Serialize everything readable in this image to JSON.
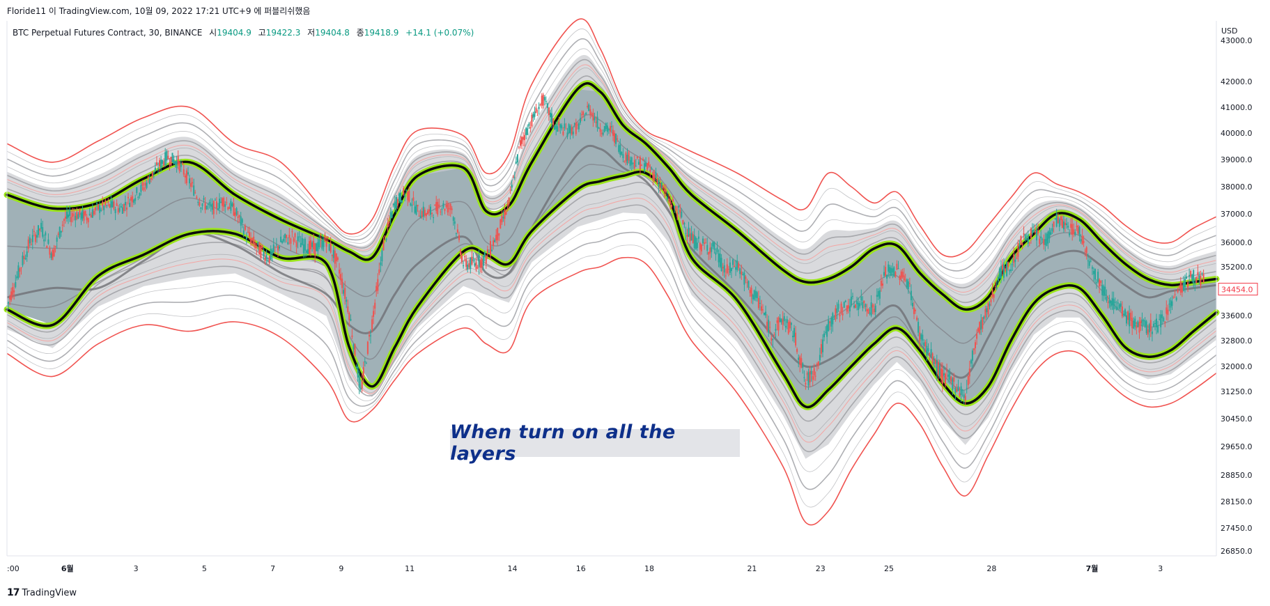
{
  "header": {
    "caption": "Floride11 이 TradingView.com, 10월 09, 2022 17:21 UTC+9 에 퍼블리쉬했음"
  },
  "legend": {
    "symbol": "BTC Perpetual Futures Contract, 30, BINANCE",
    "open_label": "시",
    "open": "19404.9",
    "high_label": "고",
    "high": "19422.3",
    "low_label": "저",
    "low": "19404.8",
    "close_label": "종",
    "close": "19418.9",
    "change": "+14.1 (+0.07%)"
  },
  "annotation": "When turn on all the layers",
  "footer": {
    "brand": "TradingView"
  },
  "colors": {
    "bull": "#089981",
    "band_fill": "#8fa3aa",
    "band_green": "#9be51a",
    "outer_red": "#f05350",
    "gray_line": "#8a8b91",
    "price_tag": "#f23645",
    "annotation_text": "#0d2f8a",
    "annotation_bg": "#e3e4e8"
  },
  "chart_data": {
    "type": "line",
    "currency": "USD",
    "last_price_tag": "34454.0",
    "y_ticks": [
      {
        "label": "43000.0",
        "v": 43000
      },
      {
        "label": "42000.0",
        "v": 42000
      },
      {
        "label": "41000.0",
        "v": 41000
      },
      {
        "label": "40000.0",
        "v": 40000
      },
      {
        "label": "39000.0",
        "v": 39000
      },
      {
        "label": "38000.0",
        "v": 38000
      },
      {
        "label": "37000.0",
        "v": 37000
      },
      {
        "label": "36000.0",
        "v": 36000
      },
      {
        "label": "35200.0",
        "v": 35200
      },
      {
        "label": "33600.0",
        "v": 33600
      },
      {
        "label": "32800.0",
        "v": 32800
      },
      {
        "label": "32000.0",
        "v": 32000
      },
      {
        "label": "31250.0",
        "v": 31250
      },
      {
        "label": "30450.0",
        "v": 30450
      },
      {
        "label": "29650.0",
        "v": 29650
      },
      {
        "label": "28850.0",
        "v": 28850
      },
      {
        "label": "28150.0",
        "v": 28150
      },
      {
        "label": "27450.0",
        "v": 27450
      },
      {
        "label": "26850.0",
        "v": 26850
      }
    ],
    "x_ticks": [
      {
        "label": ":00",
        "t": 0.0
      },
      {
        "label": "6월",
        "t": 5.3,
        "bold": true
      },
      {
        "label": "3",
        "t": 11.3
      },
      {
        "label": "5",
        "t": 17.3
      },
      {
        "label": "7",
        "t": 23.3
      },
      {
        "label": "9",
        "t": 29.3
      },
      {
        "label": "11",
        "t": 35.3
      },
      {
        "label": "14",
        "t": 44.3
      },
      {
        "label": "16",
        "t": 50.3
      },
      {
        "label": "18",
        "t": 56.3
      },
      {
        "label": "21",
        "t": 65.3
      },
      {
        "label": "23",
        "t": 71.3
      },
      {
        "label": "25",
        "t": 77.3
      },
      {
        "label": "28",
        "t": 86.3
      },
      {
        "label": "7월",
        "t": 95.1,
        "bold": true
      },
      {
        "label": "3",
        "t": 101.1
      }
    ],
    "x_range": [
      0,
      106
    ],
    "series": [
      {
        "role": "mid",
        "x": [
          0,
          4,
          8,
          12,
          16,
          20,
          24,
          28,
          30,
          32,
          34,
          36,
          40,
          42,
          44,
          46,
          50,
          52,
          54,
          56,
          58,
          60,
          64,
          68,
          70,
          72,
          74,
          76,
          78,
          80,
          82,
          84,
          86,
          88,
          90,
          92,
          94,
          96,
          98,
          100,
          102,
          104,
          106
        ],
        "values": [
          34200,
          34500,
          34500,
          35400,
          36300,
          35900,
          35000,
          34300,
          33300,
          33100,
          34300,
          35300,
          36200,
          35000,
          35000,
          36500,
          39200,
          39400,
          38700,
          38200,
          37100,
          35800,
          34300,
          32600,
          32000,
          32200,
          32700,
          33500,
          33900,
          32700,
          32000,
          31700,
          32900,
          34300,
          35200,
          35600,
          35700,
          35200,
          34600,
          34200,
          34400,
          34500,
          34600
        ]
      },
      {
        "role": "upper_band",
        "x": [
          0,
          4,
          8,
          12,
          16,
          20,
          24,
          28,
          30,
          32,
          34,
          36,
          40,
          42,
          44,
          46,
          50,
          52,
          54,
          56,
          58,
          60,
          64,
          68,
          70,
          72,
          74,
          76,
          78,
          80,
          82,
          84,
          86,
          88,
          90,
          92,
          94,
          96,
          98,
          100,
          102,
          104,
          106
        ],
        "values": [
          37700,
          37200,
          37400,
          38300,
          38900,
          37700,
          36800,
          36100,
          35700,
          35500,
          37000,
          38400,
          38700,
          37100,
          37300,
          38900,
          41700,
          41600,
          40300,
          39600,
          38700,
          37700,
          36400,
          35100,
          34700,
          34800,
          35200,
          35800,
          35900,
          35000,
          34300,
          33800,
          34200,
          35500,
          36300,
          37000,
          36800,
          36000,
          35300,
          34800,
          34600,
          34700,
          34800
        ]
      },
      {
        "role": "lower_band",
        "x": [
          0,
          4,
          8,
          12,
          16,
          20,
          24,
          28,
          30,
          32,
          34,
          36,
          40,
          42,
          44,
          46,
          50,
          52,
          54,
          56,
          58,
          60,
          64,
          68,
          70,
          72,
          74,
          76,
          78,
          80,
          82,
          84,
          86,
          88,
          90,
          92,
          94,
          96,
          98,
          100,
          102,
          104,
          106
        ],
        "values": [
          33800,
          33300,
          34900,
          35600,
          36300,
          36300,
          35500,
          35300,
          32600,
          31400,
          32600,
          33900,
          35700,
          35600,
          35300,
          36400,
          37900,
          38200,
          38400,
          38500,
          37600,
          35500,
          34100,
          31800,
          30800,
          31300,
          32000,
          32700,
          33200,
          32500,
          31500,
          30900,
          31400,
          32800,
          34000,
          34500,
          34500,
          33600,
          32600,
          32300,
          32500,
          33100,
          33700
        ]
      },
      {
        "role": "outer_upper",
        "x": [
          0,
          4,
          8,
          12,
          16,
          20,
          24,
          28,
          30,
          32,
          34,
          36,
          40,
          42,
          44,
          46,
          50,
          52,
          54,
          56,
          58,
          60,
          64,
          68,
          70,
          72,
          74,
          76,
          78,
          80,
          82,
          84,
          86,
          88,
          90,
          92,
          94,
          96,
          98,
          100,
          102,
          104,
          106
        ],
        "values": [
          39600,
          38900,
          39700,
          40600,
          41000,
          39600,
          38900,
          37000,
          36300,
          36800,
          38800,
          40100,
          39900,
          38500,
          39200,
          41900,
          43500,
          42800,
          41200,
          40100,
          39700,
          39300,
          38500,
          37500,
          37200,
          38500,
          38000,
          37400,
          37800,
          36600,
          35600,
          35700,
          36600,
          37600,
          38500,
          38100,
          37800,
          37300,
          36600,
          36100,
          36000,
          36500,
          36900
        ]
      },
      {
        "role": "outer_lower",
        "x": [
          0,
          4,
          8,
          12,
          16,
          20,
          24,
          28,
          30,
          32,
          34,
          36,
          40,
          42,
          44,
          46,
          50,
          52,
          54,
          56,
          58,
          60,
          64,
          68,
          70,
          72,
          74,
          76,
          78,
          80,
          82,
          84,
          86,
          88,
          90,
          92,
          94,
          96,
          98,
          100,
          102,
          104,
          106
        ],
        "values": [
          32400,
          31700,
          32700,
          33300,
          33100,
          33400,
          32900,
          31600,
          30400,
          30700,
          31600,
          32400,
          33200,
          32700,
          32500,
          34100,
          35000,
          35200,
          35500,
          35300,
          34200,
          32800,
          31200,
          29100,
          27600,
          27900,
          29000,
          30000,
          30900,
          30300,
          29100,
          28300,
          29400,
          30700,
          31800,
          32400,
          32400,
          31700,
          31100,
          30800,
          30900,
          31300,
          31800
        ]
      }
    ],
    "candles": {
      "x": [
        0,
        1,
        2,
        3,
        4,
        5,
        6,
        7,
        8,
        9,
        10,
        11,
        12,
        13,
        14,
        15,
        16,
        17,
        18,
        19,
        20,
        21,
        22,
        23,
        24,
        25,
        26,
        27,
        28,
        29,
        30,
        31,
        32,
        33,
        34,
        35,
        36,
        37,
        38,
        39,
        40,
        41,
        42,
        43,
        44,
        45,
        46,
        47,
        48,
        49,
        50,
        51,
        52,
        53,
        54,
        55,
        56,
        57,
        58,
        59,
        60,
        61,
        62,
        63,
        64,
        65,
        66,
        67,
        68,
        69,
        70,
        71,
        72,
        73,
        74,
        75,
        76,
        77,
        78,
        79,
        80,
        81,
        82,
        83,
        84,
        85,
        86,
        87,
        88,
        89,
        90,
        91,
        92,
        93,
        94,
        95,
        96,
        97,
        98,
        99,
        100,
        101,
        102,
        103,
        104,
        105
      ],
      "values": [
        33900,
        35000,
        36000,
        36500,
        35600,
        36800,
        37000,
        36900,
        37200,
        37300,
        37200,
        37600,
        38000,
        38600,
        39100,
        38900,
        38200,
        37400,
        37200,
        37500,
        37100,
        36300,
        35800,
        35500,
        36000,
        36200,
        35900,
        35800,
        36100,
        35300,
        33700,
        31200,
        33400,
        35900,
        37400,
        37800,
        37100,
        37000,
        37300,
        37200,
        35300,
        35300,
        35500,
        36300,
        37400,
        39600,
        40500,
        41300,
        40300,
        40100,
        40200,
        41000,
        40200,
        40100,
        39200,
        38900,
        38800,
        38300,
        37500,
        37000,
        36100,
        35900,
        35800,
        35000,
        35300,
        34500,
        34000,
        33000,
        33500,
        33000,
        31500,
        32000,
        33300,
        33800,
        34000,
        34000,
        33800,
        35000,
        35100,
        34700,
        33000,
        32300,
        31700,
        31500,
        31100,
        33000,
        33800,
        35000,
        35200,
        36100,
        36300,
        36000,
        36800,
        36500,
        36400,
        35300,
        34500,
        34000,
        33600,
        33300,
        33200,
        33300,
        34000,
        34600,
        34900,
        34700
      ]
    }
  }
}
